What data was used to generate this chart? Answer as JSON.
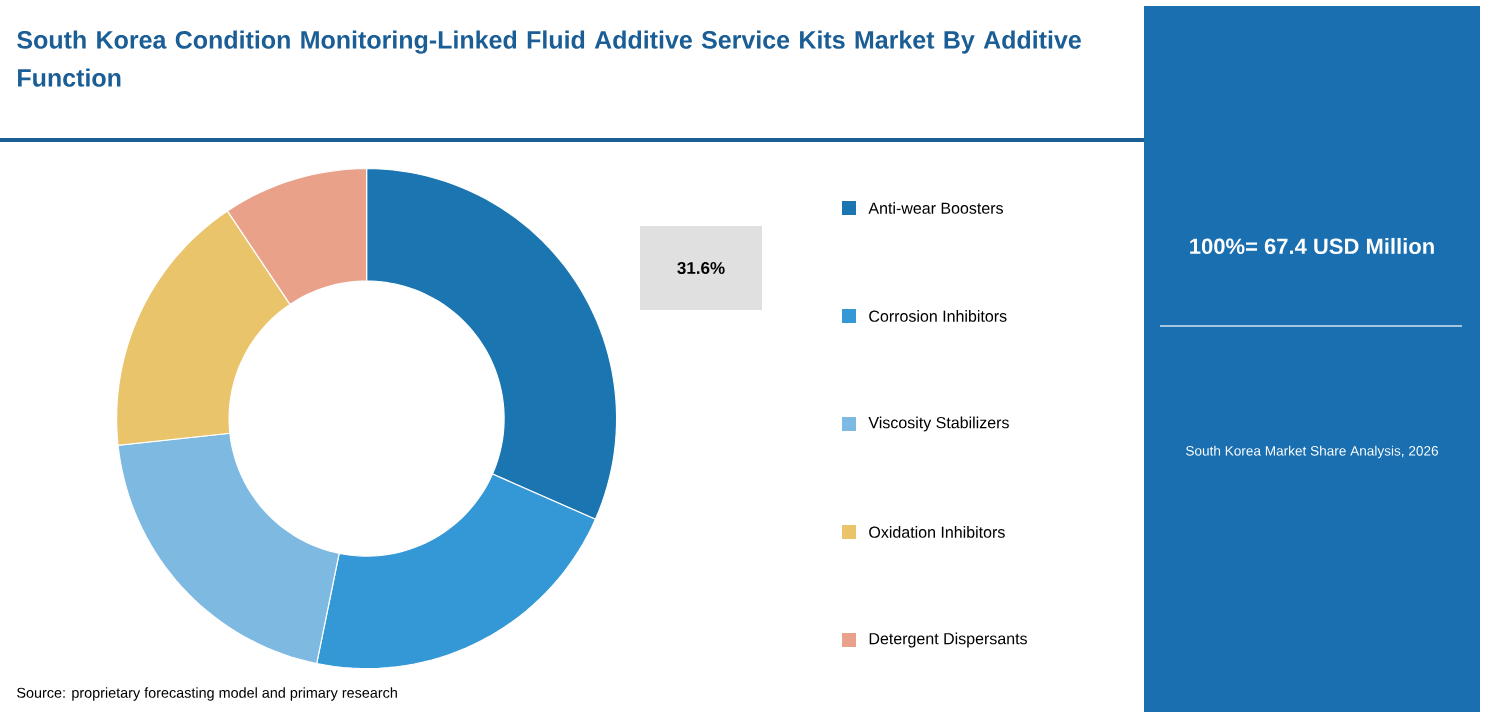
{
  "chart_data": {
    "type": "donut",
    "title": "South Korea Condition Monitoring-Linked Fluid Additive Service Kits Market By Additive Function",
    "categories": [
      "Anti-wear Boosters",
      "Corrosion Inhibitors",
      "Viscosity Stabilizers",
      "Oxidation Inhibitors",
      "Detergent Dispersants"
    ],
    "values": [
      31.6,
      21.6,
      20.1,
      17.3,
      9.4
    ],
    "colors": [
      "#1a75b0",
      "#3497d6",
      "#7db9e0",
      "#e9c46a",
      "#e9a189"
    ],
    "value_labels": [
      "31.6%",
      null,
      null,
      null,
      null
    ],
    "legend": "right",
    "annotations": [
      "100%= 67.4 USD Million",
      "South Korea Market Share Analysis, 2026",
      "Source: proprietary forecasting model and primary research"
    ]
  }
}
